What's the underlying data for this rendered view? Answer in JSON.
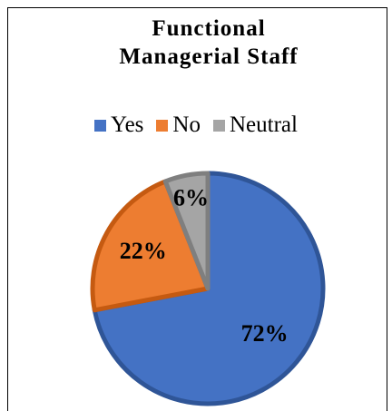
{
  "chart_data": {
    "type": "pie",
    "title": "Functional Managerial Staff",
    "categories": [
      "Yes",
      "No",
      "Neutral"
    ],
    "values": [
      72,
      22,
      6
    ],
    "value_labels": [
      "72%",
      "22%",
      "6%"
    ],
    "colors": [
      "#4472c4",
      "#ed7d31",
      "#a5a5a5"
    ],
    "legend": "top"
  }
}
